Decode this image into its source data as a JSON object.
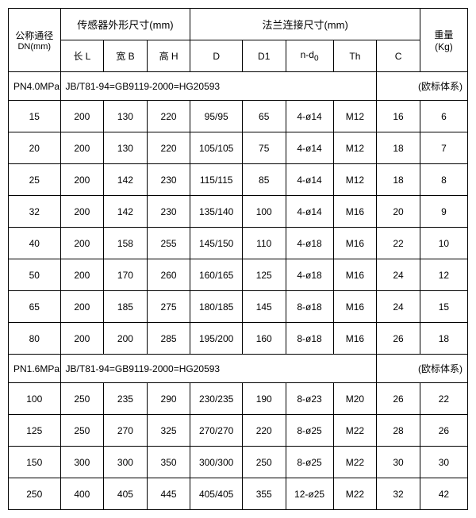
{
  "header": {
    "dn_line1": "公称通径",
    "dn_line2": "DN(mm)",
    "sensor_group": "传感器外形尺寸(mm)",
    "flange_group": "法兰连接尺寸(mm)",
    "weight_line1": "重量",
    "weight_line2": "(Kg)",
    "cols": {
      "L": "长 L",
      "B": "宽 B",
      "H": "高 H",
      "D": "D",
      "D1": "D1",
      "nd0": "n-d",
      "nd0_sub": "0",
      "Th": "Th",
      "C": "C"
    }
  },
  "sections": [
    {
      "left_label": "PN4.0MPa",
      "standard": "JB/T81-94=GB9119-2000=HG20593",
      "right_label": "(欧标体系)",
      "rows": [
        [
          "15",
          "200",
          "130",
          "220",
          "95/95",
          "65",
          "4-ø14",
          "M12",
          "16",
          "6"
        ],
        [
          "20",
          "200",
          "130",
          "220",
          "105/105",
          "75",
          "4-ø14",
          "M12",
          "18",
          "7"
        ],
        [
          "25",
          "200",
          "142",
          "230",
          "115/115",
          "85",
          "4-ø14",
          "M12",
          "18",
          "8"
        ],
        [
          "32",
          "200",
          "142",
          "230",
          "135/140",
          "100",
          "4-ø14",
          "M16",
          "20",
          "9"
        ],
        [
          "40",
          "200",
          "158",
          "255",
          "145/150",
          "110",
          "4-ø18",
          "M16",
          "22",
          "10"
        ],
        [
          "50",
          "200",
          "170",
          "260",
          "160/165",
          "125",
          "4-ø18",
          "M16",
          "24",
          "12"
        ],
        [
          "65",
          "200",
          "185",
          "275",
          "180/185",
          "145",
          "8-ø18",
          "M16",
          "24",
          "15"
        ],
        [
          "80",
          "200",
          "200",
          "285",
          "195/200",
          "160",
          "8-ø18",
          "M16",
          "26",
          "18"
        ]
      ]
    },
    {
      "left_label": "PN1.6MPa",
      "standard": "JB/T81-94=GB9119-2000=HG20593",
      "right_label": "(欧标体系)",
      "rows": [
        [
          "100",
          "250",
          "235",
          "290",
          "230/235",
          "190",
          "8-ø23",
          "M20",
          "26",
          "22"
        ],
        [
          "125",
          "250",
          "270",
          "325",
          "270/270",
          "220",
          "8-ø25",
          "M22",
          "28",
          "26"
        ],
        [
          "150",
          "300",
          "300",
          "350",
          "300/300",
          "250",
          "8-ø25",
          "M22",
          "30",
          "30"
        ],
        [
          "250",
          "400",
          "405",
          "445",
          "405/405",
          "355",
          "12-ø25",
          "M22",
          "32",
          "42"
        ]
      ]
    }
  ]
}
